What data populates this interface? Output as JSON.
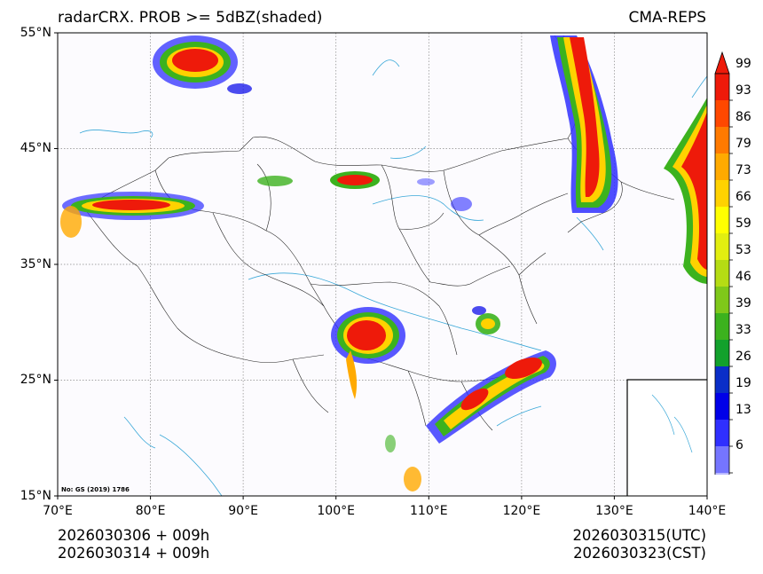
{
  "header": {
    "title_left": "radarCRX. PROB >= 5dBZ(shaded)",
    "title_right": "CMA-REPS"
  },
  "axes": {
    "lat_labels": [
      "55°N",
      "45°N",
      "35°N",
      "25°N",
      "15°N"
    ],
    "lon_labels": [
      "70°E",
      "80°E",
      "90°E",
      "100°E",
      "110°E",
      "120°E",
      "130°E",
      "140°E"
    ]
  },
  "footer": {
    "left_line1": "2026030306  +  009h",
    "left_line2": "2026030314  +  009h",
    "right_line1": "2026030315(UTC)",
    "right_line2": "2026030323(CST)"
  },
  "map": {
    "approval_no": "No: GS (2019) 1786"
  },
  "colorbar": {
    "labels": [
      "99",
      "93",
      "86",
      "79",
      "73",
      "66",
      "59",
      "53",
      "46",
      "39",
      "33",
      "26",
      "19",
      "13",
      "6"
    ],
    "colors": [
      "#b9b9ff",
      "#7575ff",
      "#2f2fff",
      "#0000e8",
      "#0a2ec8",
      "#12a12c",
      "#3cb21e",
      "#7fc81a",
      "#b5dc14",
      "#e2ee10",
      "#ffff00",
      "#ffd200",
      "#ffaa00",
      "#ff7a00",
      "#ff4800",
      "#ee1a0a"
    ]
  }
}
